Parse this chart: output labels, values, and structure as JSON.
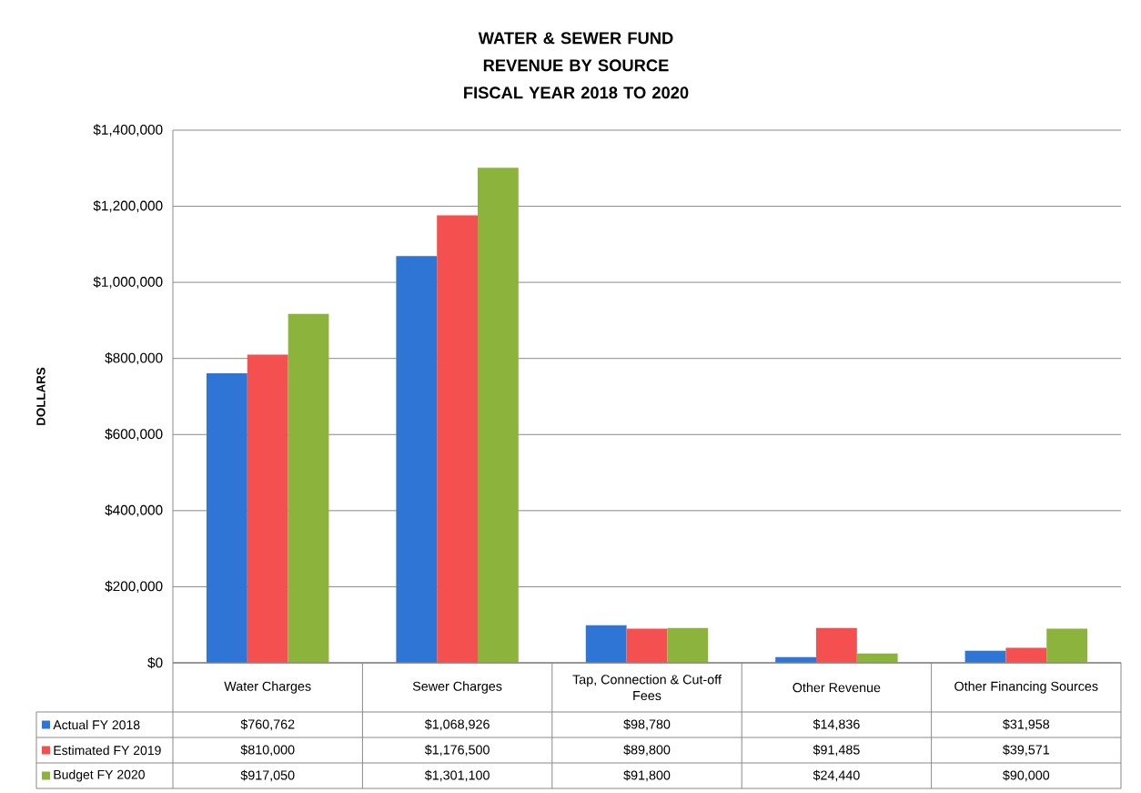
{
  "chart_data": {
    "type": "bar",
    "title": "WATER & SEWER FUND REVENUE BY SOURCE",
    "subtitle": "FISCAL YEAR 2018 TO 2020",
    "ylabel": "DOLLARS",
    "categories": [
      "Water Charges",
      "Sewer Charges",
      "Tap, Connection & Cut-off Fees",
      "Other Revenue",
      "Other Financing Sources"
    ],
    "series": [
      {
        "name": "Actual FY 2018",
        "color": "#2e75d5",
        "values": [
          760762,
          1068926,
          98780,
          14836,
          31958
        ],
        "value_labels": [
          "$760,762",
          "$1,068,926",
          "$98,780",
          "$14,836",
          "$31,958"
        ]
      },
      {
        "name": "Estimated FY 2019",
        "color": "#f55050",
        "values": [
          810000,
          1176500,
          89800,
          91485,
          39571
        ],
        "value_labels": [
          "$810,000",
          "$1,176,500",
          "$89,800",
          "$91,485",
          "$39,571"
        ]
      },
      {
        "name": "Budget FY 2020",
        "color": "#8cb43c",
        "values": [
          917050,
          1301100,
          91800,
          24440,
          90000
        ],
        "value_labels": [
          "$917,050",
          "$1,301,100",
          "$91,800",
          "$24,440",
          "$90,000"
        ]
      }
    ],
    "ylim": [
      0,
      1400000
    ],
    "yticks": [
      {
        "value": 0,
        "label": "$0"
      },
      {
        "value": 200000,
        "label": "$200,000"
      },
      {
        "value": 400000,
        "label": "$400,000"
      },
      {
        "value": 600000,
        "label": "$600,000"
      },
      {
        "value": 800000,
        "label": "$800,000"
      },
      {
        "value": 1000000,
        "label": "$1,000,000"
      },
      {
        "value": 1200000,
        "label": "$1,200,000"
      },
      {
        "value": 1400000,
        "label": "$1,400,000"
      }
    ],
    "grid": "y",
    "legend": "bottom left"
  }
}
